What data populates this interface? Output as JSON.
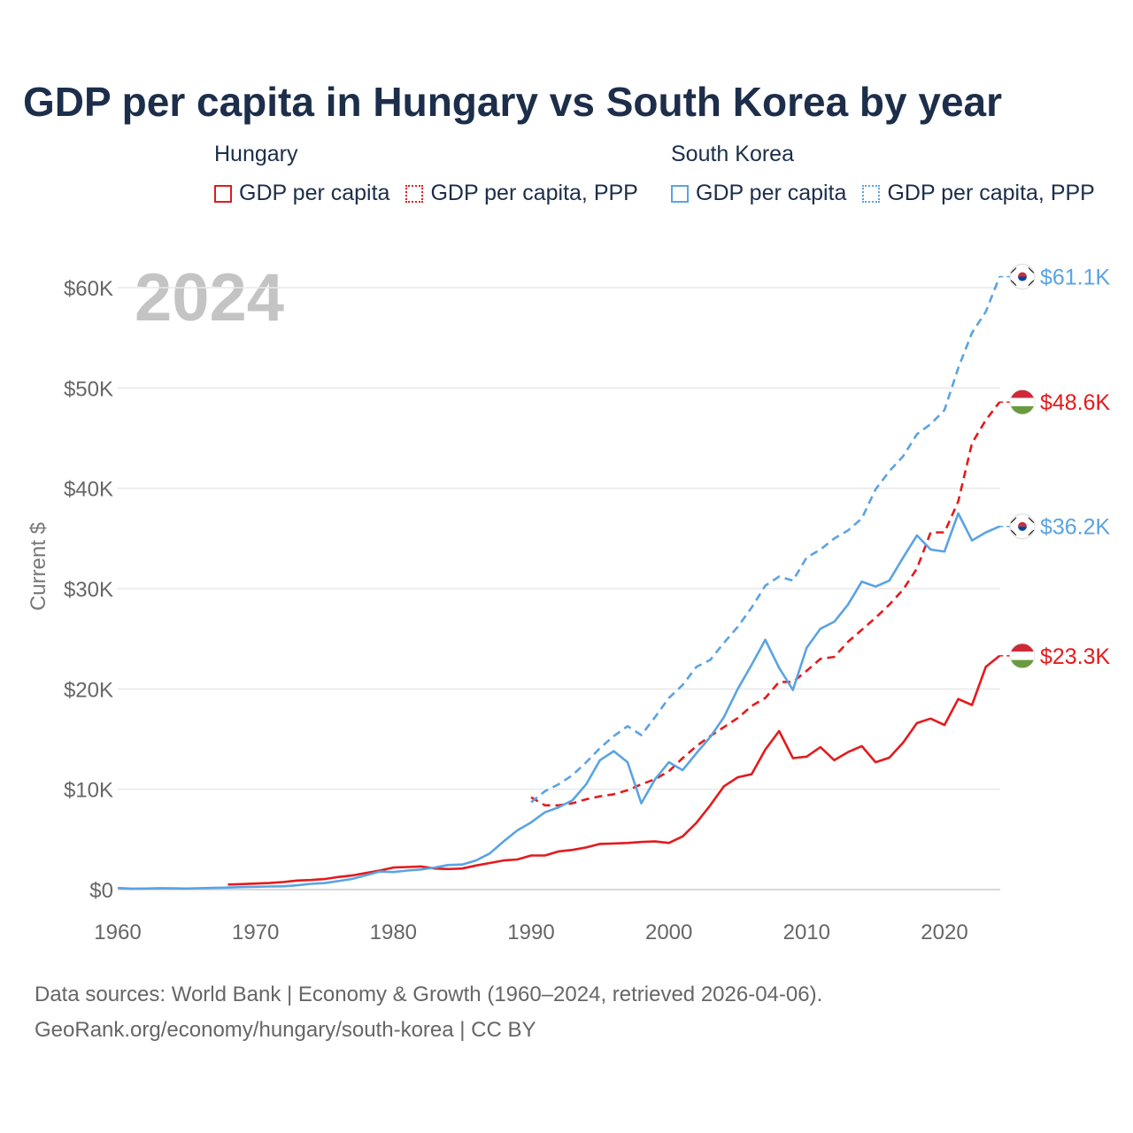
{
  "title": "GDP per capita in Hungary vs South Korea by year",
  "legend": {
    "groups": [
      {
        "name": "Hungary",
        "items": [
          {
            "label": "GDP per capita",
            "color": "#e41a1c",
            "style": "solid"
          },
          {
            "label": "GDP per capita, PPP",
            "color": "#e41a1c",
            "style": "dotted"
          }
        ]
      },
      {
        "name": "South Korea",
        "items": [
          {
            "label": "GDP per capita",
            "color": "#5aa3e3",
            "style": "solid"
          },
          {
            "label": "GDP per capita, PPP",
            "color": "#5aa3e3",
            "style": "dotted"
          }
        ]
      }
    ]
  },
  "source": {
    "line1": "Data sources: World Bank | Economy & Growth (1960–2024, retrieved 2026-04-06).",
    "line2": "GeoRank.org/economy/hungary/south-korea | CC BY"
  },
  "chart_data": {
    "type": "line",
    "year_label": "2024",
    "ylabel": "Current $",
    "xlim": [
      1960,
      2024
    ],
    "ylim": [
      0,
      62000
    ],
    "x_ticks": [
      1960,
      1970,
      1980,
      1990,
      2000,
      2010,
      2020
    ],
    "x_tick_labels": [
      "1960",
      "1970",
      "1980",
      "1990",
      "2000",
      "2010",
      "2020"
    ],
    "y_ticks": [
      0,
      10000,
      20000,
      30000,
      40000,
      50000,
      60000
    ],
    "y_tick_labels": [
      "$0",
      "$10K",
      "$20K",
      "$30K",
      "$40K",
      "$50K",
      "$60K"
    ],
    "grid": true,
    "series": [
      {
        "name": "Hungary GDP per capita",
        "country": "Hungary",
        "flag": "hungary-flag",
        "color": "#e41a1c",
        "dash": "solid",
        "end_label": "$23.3K",
        "x": [
          1968,
          1969,
          1970,
          1971,
          1972,
          1973,
          1974,
          1975,
          1976,
          1977,
          1978,
          1979,
          1980,
          1981,
          1982,
          1983,
          1984,
          1985,
          1986,
          1987,
          1988,
          1989,
          1990,
          1991,
          1992,
          1993,
          1994,
          1995,
          1996,
          1997,
          1998,
          1999,
          2000,
          2001,
          2002,
          2003,
          2004,
          2005,
          2006,
          2007,
          2008,
          2009,
          2010,
          2011,
          2012,
          2013,
          2014,
          2015,
          2016,
          2017,
          2018,
          2019,
          2020,
          2021,
          2022,
          2023,
          2024
        ],
        "y": [
          500,
          550,
          600,
          650,
          750,
          900,
          950,
          1050,
          1250,
          1400,
          1650,
          1900,
          2200,
          2250,
          2300,
          2100,
          2050,
          2100,
          2400,
          2650,
          2900,
          3000,
          3400,
          3400,
          3800,
          3950,
          4200,
          4550,
          4600,
          4650,
          4750,
          4800,
          4650,
          5300,
          6650,
          8400,
          10300,
          11200,
          11500,
          13950,
          15800,
          13100,
          13250,
          14200,
          12900,
          13700,
          14300,
          12700,
          13150,
          14650,
          16600,
          17050,
          16400,
          19000,
          18400,
          22200,
          23300
        ]
      },
      {
        "name": "Hungary GDP per capita, PPP",
        "country": "Hungary",
        "flag": "hungary-flag",
        "color": "#e41a1c",
        "dash": "dashed",
        "end_label": "$48.6K",
        "x": [
          1990,
          1991,
          1992,
          1993,
          1994,
          1995,
          1996,
          1997,
          1998,
          1999,
          2000,
          2001,
          2002,
          2003,
          2004,
          2005,
          2006,
          2007,
          2008,
          2009,
          2010,
          2011,
          2012,
          2013,
          2014,
          2015,
          2016,
          2017,
          2018,
          2019,
          2020,
          2021,
          2022,
          2023,
          2024
        ],
        "y": [
          9200,
          8400,
          8400,
          8600,
          9000,
          9300,
          9500,
          9900,
          10500,
          11000,
          11800,
          13100,
          14300,
          15300,
          16200,
          17100,
          18300,
          19100,
          20700,
          20700,
          21800,
          23000,
          23200,
          24700,
          25900,
          27100,
          28400,
          29900,
          32000,
          35600,
          35600,
          38700,
          44500,
          46800,
          48600
        ]
      },
      {
        "name": "South Korea GDP per capita",
        "country": "South Korea",
        "flag": "south-korea-flag",
        "color": "#5aa3e3",
        "dash": "solid",
        "end_label": "$36.2K",
        "x": [
          1960,
          1961,
          1962,
          1963,
          1964,
          1965,
          1966,
          1967,
          1968,
          1969,
          1970,
          1971,
          1972,
          1973,
          1974,
          1975,
          1976,
          1977,
          1978,
          1979,
          1980,
          1981,
          1982,
          1983,
          1984,
          1985,
          1986,
          1987,
          1988,
          1989,
          1990,
          1991,
          1992,
          1993,
          1994,
          1995,
          1996,
          1997,
          1998,
          1999,
          2000,
          2001,
          2002,
          2003,
          2004,
          2005,
          2006,
          2007,
          2008,
          2009,
          2010,
          2011,
          2012,
          2013,
          2014,
          2015,
          2016,
          2017,
          2018,
          2019,
          2020,
          2021,
          2022,
          2023,
          2024
        ],
        "y": [
          160,
          95,
          105,
          145,
          125,
          110,
          140,
          165,
          200,
          250,
          280,
          305,
          330,
          420,
          570,
          640,
          850,
          1060,
          1420,
          1800,
          1750,
          1900,
          2000,
          2200,
          2450,
          2500,
          2900,
          3600,
          4800,
          5900,
          6700,
          7700,
          8200,
          8900,
          10500,
          12900,
          13800,
          12700,
          8600,
          11000,
          12700,
          11900,
          13600,
          15200,
          17200,
          20000,
          22400,
          24900,
          22100,
          19900,
          24100,
          26000,
          26700,
          28400,
          30700,
          30200,
          30800,
          33100,
          35300,
          33900,
          33700,
          37500,
          34800,
          35600,
          36200
        ]
      },
      {
        "name": "South Korea GDP per capita, PPP",
        "country": "South Korea",
        "flag": "south-korea-flag",
        "color": "#5aa3e3",
        "dash": "dashed",
        "end_label": "$61.1K",
        "x": [
          1990,
          1991,
          1992,
          1993,
          1994,
          1995,
          1996,
          1997,
          1998,
          1999,
          2000,
          2001,
          2002,
          2003,
          2004,
          2005,
          2006,
          2007,
          2008,
          2009,
          2010,
          2011,
          2012,
          2013,
          2014,
          2015,
          2016,
          2017,
          2018,
          2019,
          2020,
          2021,
          2022,
          2023,
          2024
        ],
        "y": [
          8700,
          9800,
          10500,
          11400,
          12700,
          14100,
          15300,
          16300,
          15400,
          17200,
          19100,
          20400,
          22200,
          22900,
          24600,
          26200,
          28100,
          30300,
          31200,
          30800,
          33100,
          33900,
          35000,
          35800,
          37000,
          39900,
          41700,
          43200,
          45400,
          46400,
          47800,
          52000,
          55500,
          57600,
          61100
        ]
      }
    ]
  }
}
